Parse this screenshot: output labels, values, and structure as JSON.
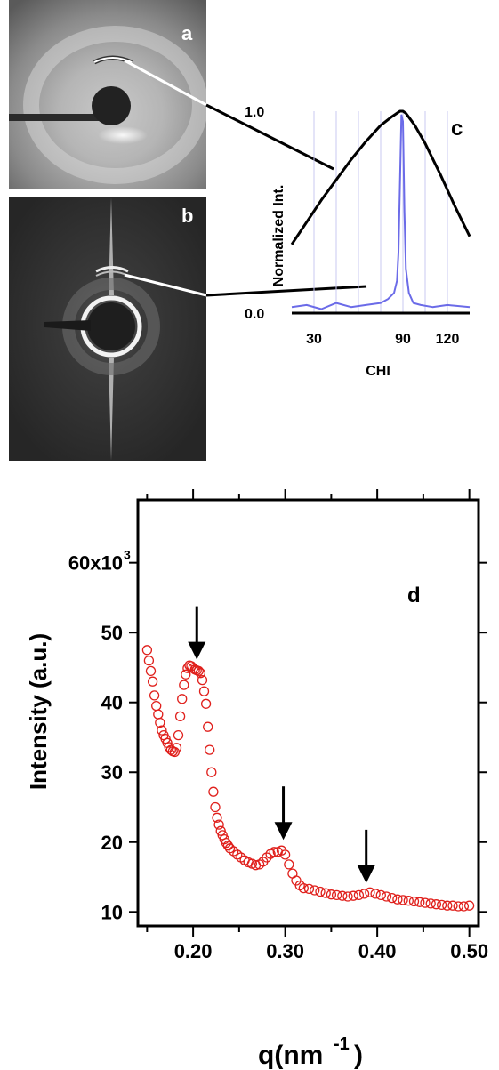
{
  "panels": {
    "a": {
      "label": "a"
    },
    "b": {
      "label": "b"
    }
  },
  "chart_data": [
    {
      "id": "c",
      "type": "line",
      "panel_label": "c",
      "xlabel": "CHI",
      "ylabel": "Normalized Int.",
      "xlim": [
        15,
        135
      ],
      "ylim": [
        0.0,
        1.0
      ],
      "xticks": [
        30,
        90,
        120
      ],
      "yticks": [
        0.0,
        1.0
      ],
      "xtick_labels": [
        "30",
        "90",
        "120"
      ],
      "ytick_labels": [
        "0.0",
        "1.0"
      ],
      "grid": "vertical",
      "series": [
        {
          "color": "#000000",
          "x": [
            15,
            25,
            35,
            45,
            55,
            65,
            75,
            82,
            86,
            88,
            90,
            92,
            94,
            98,
            105,
            115,
            125,
            135
          ],
          "y": [
            0.34,
            0.45,
            0.56,
            0.66,
            0.76,
            0.85,
            0.93,
            0.97,
            0.99,
            1.0,
            1.0,
            0.99,
            0.97,
            0.93,
            0.84,
            0.69,
            0.53,
            0.38
          ]
        },
        {
          "color": "#6b6be8",
          "x": [
            15,
            25,
            35,
            45,
            55,
            65,
            75,
            80,
            84,
            86,
            87,
            88,
            89,
            90,
            91,
            92,
            94,
            97,
            102,
            110,
            120,
            135
          ],
          "y": [
            0.03,
            0.04,
            0.02,
            0.05,
            0.03,
            0.04,
            0.05,
            0.07,
            0.1,
            0.16,
            0.3,
            0.65,
            0.98,
            0.95,
            0.5,
            0.22,
            0.1,
            0.05,
            0.04,
            0.03,
            0.04,
            0.03
          ]
        }
      ]
    },
    {
      "id": "d",
      "type": "scatter",
      "panel_label": "d",
      "xlabel": "q(nm",
      "xlabel_sup": "-1",
      "xlabel_end": ")",
      "ylabel": "Intensity (a.u.)",
      "xlim": [
        0.14,
        0.51
      ],
      "ylim": [
        8000,
        69000
      ],
      "xticks": [
        0.2,
        0.3,
        0.4,
        0.5
      ],
      "xtick_labels": [
        "0.20",
        "0.30",
        "0.40",
        "0.50"
      ],
      "yticks": [
        10000,
        20000,
        30000,
        40000,
        50000,
        60000
      ],
      "ytick_labels": [
        "10",
        "20",
        "30",
        "40",
        "50",
        "60x10"
      ],
      "ytick_top_sup": "3",
      "marker_color": "#e0201c",
      "arrows_at_q": [
        0.204,
        0.298,
        0.388
      ],
      "x": [
        0.15,
        0.152,
        0.154,
        0.156,
        0.158,
        0.16,
        0.162,
        0.164,
        0.166,
        0.168,
        0.17,
        0.172,
        0.174,
        0.176,
        0.178,
        0.18,
        0.182,
        0.184,
        0.186,
        0.188,
        0.19,
        0.192,
        0.194,
        0.196,
        0.198,
        0.2,
        0.202,
        0.204,
        0.206,
        0.208,
        0.21,
        0.212,
        0.214,
        0.216,
        0.218,
        0.22,
        0.222,
        0.224,
        0.226,
        0.228,
        0.23,
        0.232,
        0.234,
        0.236,
        0.238,
        0.24,
        0.244,
        0.248,
        0.252,
        0.256,
        0.26,
        0.264,
        0.268,
        0.272,
        0.276,
        0.28,
        0.284,
        0.288,
        0.292,
        0.296,
        0.3,
        0.304,
        0.308,
        0.312,
        0.316,
        0.32,
        0.326,
        0.332,
        0.338,
        0.344,
        0.35,
        0.356,
        0.362,
        0.368,
        0.374,
        0.38,
        0.386,
        0.392,
        0.398,
        0.404,
        0.41,
        0.416,
        0.422,
        0.428,
        0.434,
        0.44,
        0.446,
        0.452,
        0.458,
        0.464,
        0.47,
        0.476,
        0.482,
        0.488,
        0.494,
        0.5
      ],
      "y": [
        47500,
        46000,
        44500,
        43000,
        41000,
        39500,
        38300,
        37100,
        36000,
        35300,
        34800,
        34200,
        33600,
        33200,
        33000,
        32900,
        33500,
        35300,
        38000,
        40500,
        42500,
        44000,
        44900,
        45300,
        45200,
        44900,
        44700,
        44600,
        44500,
        44200,
        43200,
        41600,
        39800,
        36500,
        33200,
        30000,
        27200,
        25000,
        23500,
        22500,
        21600,
        21000,
        20400,
        19900,
        19500,
        19100,
        18700,
        18200,
        17800,
        17400,
        17100,
        16900,
        16700,
        16800,
        17200,
        17800,
        18300,
        18600,
        18600,
        18800,
        18200,
        16800,
        15500,
        14500,
        13800,
        13400,
        13300,
        13100,
        12900,
        12700,
        12500,
        12400,
        12300,
        12200,
        12300,
        12400,
        12600,
        12800,
        12600,
        12400,
        12200,
        12000,
        11800,
        11700,
        11600,
        11500,
        11400,
        11300,
        11200,
        11100,
        11000,
        10900,
        10900,
        10800,
        10800,
        10900
      ]
    }
  ]
}
